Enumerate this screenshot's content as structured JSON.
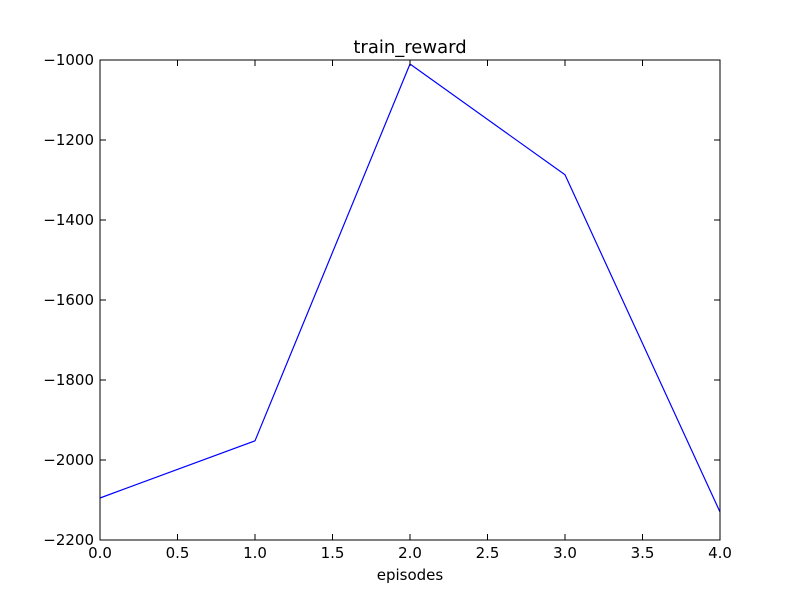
{
  "chart_data": {
    "type": "line",
    "title": "train_reward",
    "xlabel": "episodes",
    "ylabel": "",
    "xlim": [
      0.0,
      4.0
    ],
    "ylim": [
      -2200,
      -1000
    ],
    "xticks": [
      0.0,
      0.5,
      1.0,
      1.5,
      2.0,
      2.5,
      3.0,
      3.5,
      4.0
    ],
    "xtick_labels": [
      "0.0",
      "0.5",
      "1.0",
      "1.5",
      "2.0",
      "2.5",
      "3.0",
      "3.5",
      "4.0"
    ],
    "yticks": [
      -1000,
      -1200,
      -1400,
      -1600,
      -1800,
      -2000,
      -2200
    ],
    "ytick_labels": [
      "−1000",
      "−1200",
      "−1400",
      "−1600",
      "−1800",
      "−2000",
      "−2200"
    ],
    "grid": false,
    "series": [
      {
        "color": "#0000ff",
        "x": [
          0,
          1,
          2,
          3,
          4
        ],
        "y": [
          -2095,
          -1952,
          -1010,
          -1287,
          -2130
        ]
      }
    ]
  }
}
